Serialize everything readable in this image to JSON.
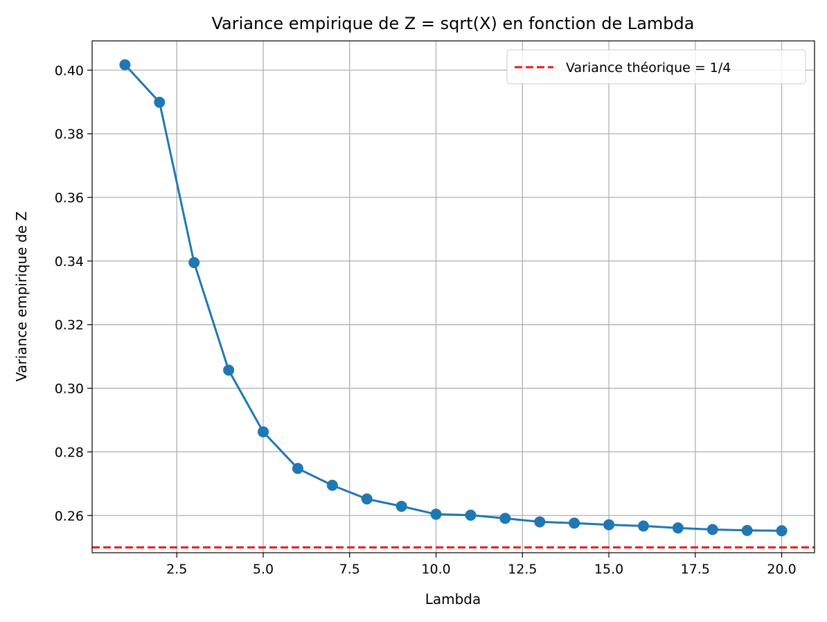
{
  "chart_data": {
    "type": "line",
    "title": "Variance empirique de Z = sqrt(X) en fonction de Lambda",
    "xlabel": "Lambda",
    "ylabel": "Variance empirique de Z",
    "xlim": [
      0.05,
      20.95
    ],
    "ylim": [
      0.2483,
      0.4092
    ],
    "x_ticks": [
      2.5,
      5.0,
      7.5,
      10.0,
      12.5,
      15.0,
      17.5,
      20.0
    ],
    "x_tick_labels": [
      "2.5",
      "5.0",
      "7.5",
      "10.0",
      "12.5",
      "15.0",
      "17.5",
      "20.0"
    ],
    "y_ticks": [
      0.26,
      0.28,
      0.3,
      0.32,
      0.34,
      0.36,
      0.38,
      0.4
    ],
    "y_tick_labels": [
      "0.26",
      "0.28",
      "0.30",
      "0.32",
      "0.34",
      "0.36",
      "0.38",
      "0.40"
    ],
    "grid": true,
    "legend_position": "top-right",
    "series": [
      {
        "x": [
          1,
          2,
          3,
          4,
          5,
          6,
          7,
          8,
          9,
          10,
          11,
          12,
          13,
          14,
          15,
          16,
          17,
          18,
          19,
          20
        ],
        "values": [
          0.4017,
          0.3899,
          0.3395,
          0.3057,
          0.2863,
          0.2748,
          0.2695,
          0.2652,
          0.2629,
          0.2604,
          0.2601,
          0.2591,
          0.258,
          0.2576,
          0.2571,
          0.2567,
          0.2561,
          0.2556,
          0.2553,
          0.2552
        ],
        "color": "#1f77b4",
        "marker": "circle"
      }
    ],
    "reference_line": {
      "label": "Variance théorique = 1/4",
      "y": 0.25,
      "color": "#e41a1c",
      "style": "dashed"
    }
  }
}
